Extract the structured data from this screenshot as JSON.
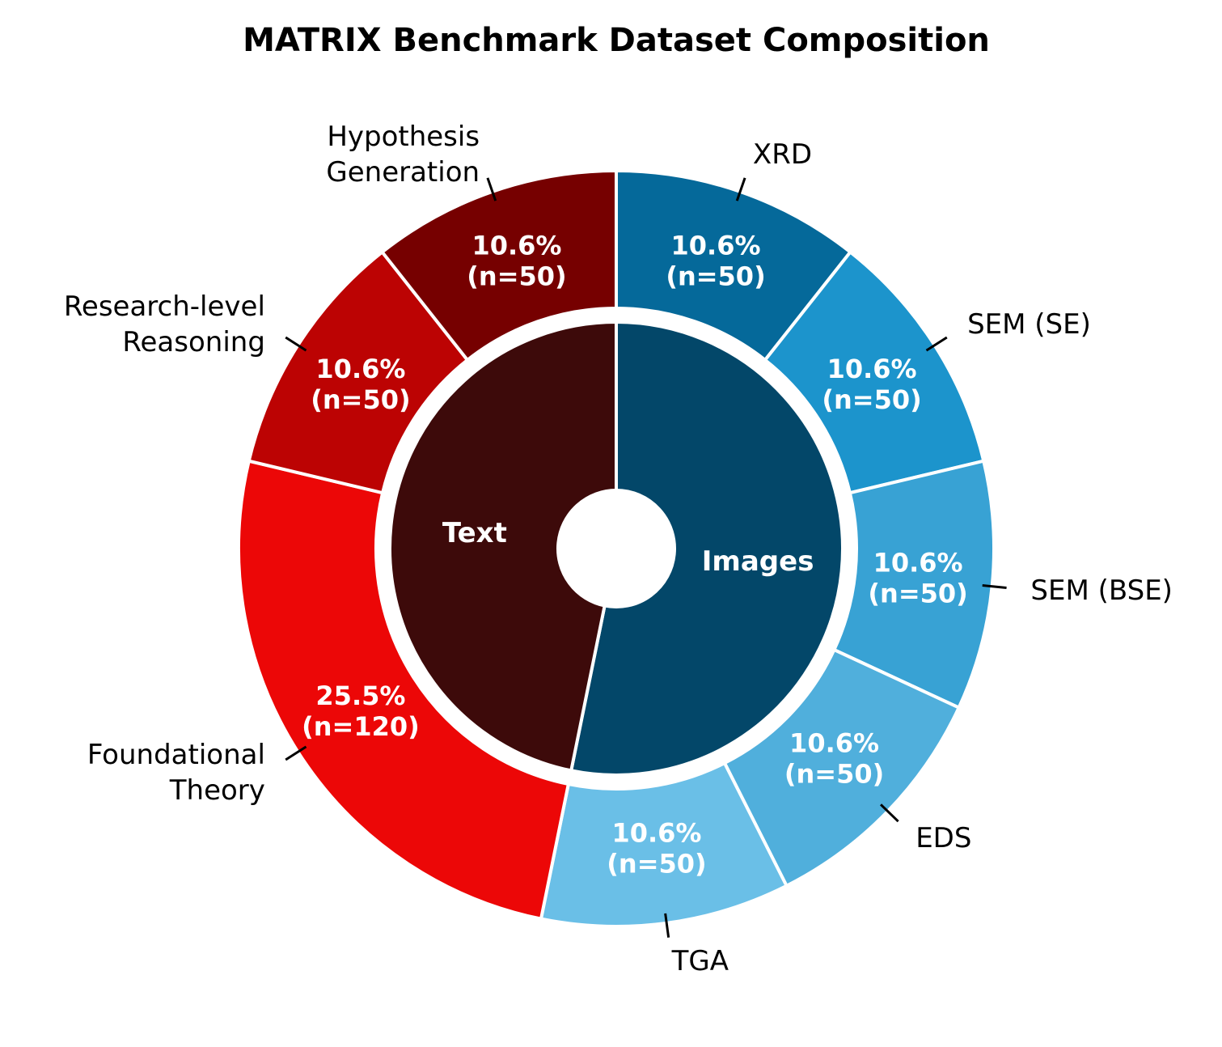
{
  "chart_data": {
    "type": "nested-donut",
    "title": "MATRIX Benchmark Dataset Composition",
    "outer": {
      "labels": [
        "XRD",
        "SEM (SE)",
        "SEM (BSE)",
        "EDS",
        "TGA",
        "Foundational\nTheory",
        "Research-level\nReasoning",
        "Hypothesis\nGeneration"
      ],
      "values": [
        50,
        50,
        50,
        50,
        50,
        120,
        50,
        50
      ],
      "value_labels": [
        "(n=50)",
        "(n=50)",
        "(n=50)",
        "(n=50)",
        "(n=50)",
        "(n=120)",
        "(n=50)",
        "(n=50)"
      ],
      "percent_labels": [
        "10.6%",
        "10.6%",
        "10.6%",
        "10.6%",
        "10.6%",
        "25.5%",
        "10.6%",
        "10.6%"
      ],
      "colors": [
        "#05699a",
        "#1c94cc",
        "#38a2d4",
        "#50afdc",
        "#6abfe7",
        "#ec0707",
        "#bc0303",
        "#760000"
      ]
    },
    "inner": {
      "labels": [
        "Images",
        "Text"
      ],
      "values": [
        250,
        220
      ],
      "colors": [
        "#034769",
        "#3d0a0a"
      ]
    }
  }
}
